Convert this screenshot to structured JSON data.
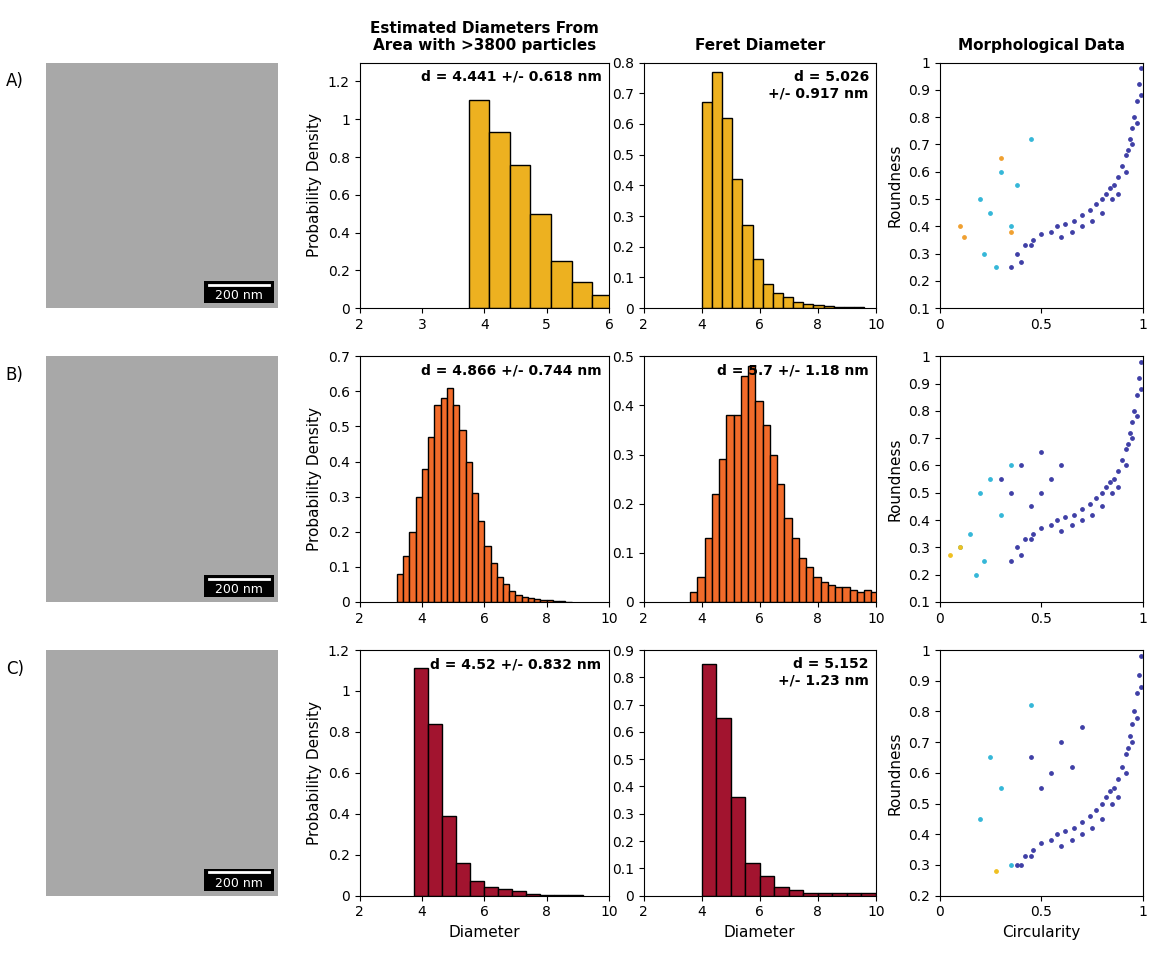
{
  "column_titles": [
    "Estimated Diameters From\nArea with >3800 particles",
    "Feret Diameter",
    "Morphological Data"
  ],
  "row_labels": [
    "A)",
    "B)",
    "C)"
  ],
  "scale_bars": [
    "200 nm",
    "200 nm",
    "200 nm"
  ],
  "chart_data": [
    {
      "type": "histogram",
      "color": "#EDB120",
      "bins": [
        3.75,
        4.08,
        4.41,
        4.74,
        5.07,
        5.4,
        5.73,
        6.06
      ],
      "counts": [
        1.1,
        0.93,
        0.76,
        0.5,
        0.25,
        0.14,
        0.07
      ],
      "xlim": [
        2,
        6
      ],
      "xticks": [
        2,
        3,
        4,
        5,
        6
      ],
      "ylim": [
        0,
        1.3
      ],
      "yticks": [
        0,
        0.2,
        0.4,
        0.6,
        0.8,
        1,
        1.2
      ],
      "ylabel": "Probability Density",
      "annotation": "d = 4.441 +/- 0.618 nm"
    },
    {
      "type": "histogram",
      "color": "#EDB120",
      "bins": [
        4.0,
        4.35,
        4.7,
        5.05,
        5.4,
        5.75,
        6.1,
        6.45,
        6.8,
        7.15,
        7.5,
        7.85,
        8.2,
        8.55,
        8.9,
        9.25,
        9.6
      ],
      "counts": [
        0.67,
        0.77,
        0.62,
        0.42,
        0.27,
        0.16,
        0.08,
        0.05,
        0.035,
        0.02,
        0.015,
        0.01,
        0.008,
        0.005,
        0.004,
        0.003
      ],
      "xlim": [
        2,
        10
      ],
      "xticks": [
        2,
        4,
        6,
        8,
        10
      ],
      "ylim": [
        0,
        0.8
      ],
      "yticks": [
        0,
        0.1,
        0.2,
        0.3,
        0.4,
        0.5,
        0.6,
        0.7,
        0.8
      ],
      "annotation": "d = 5.026\n+/- 0.917 nm"
    },
    {
      "type": "scatter",
      "xlim": [
        0,
        1
      ],
      "xticks": [
        0,
        0.5,
        1
      ],
      "ylim": [
        0.1,
        1
      ],
      "yticks": [
        0.1,
        0.2,
        0.3,
        0.4,
        0.5,
        0.6,
        0.7,
        0.8,
        0.9,
        1
      ],
      "ylabel": "Roundness",
      "series": [
        {
          "color": "#3f3fa6",
          "x": [
            0.99,
            0.98,
            0.97,
            0.96,
            0.95,
            0.94,
            0.93,
            0.92,
            0.9,
            0.88,
            0.86,
            0.84,
            0.82,
            0.8,
            0.77,
            0.74,
            0.7,
            0.66,
            0.62,
            0.58,
            0.55,
            0.5,
            0.46,
            0.42,
            0.38,
            0.99,
            0.97,
            0.95,
            0.92,
            0.88,
            0.85,
            0.8,
            0.75,
            0.7,
            0.65,
            0.6,
            0.45,
            0.4,
            0.35
          ],
          "y": [
            0.98,
            0.92,
            0.86,
            0.8,
            0.76,
            0.72,
            0.68,
            0.66,
            0.62,
            0.58,
            0.55,
            0.54,
            0.52,
            0.5,
            0.48,
            0.46,
            0.44,
            0.42,
            0.41,
            0.4,
            0.38,
            0.37,
            0.35,
            0.33,
            0.3,
            0.88,
            0.78,
            0.7,
            0.6,
            0.52,
            0.5,
            0.45,
            0.42,
            0.4,
            0.38,
            0.36,
            0.33,
            0.27,
            0.25
          ]
        },
        {
          "color": "#35b7d8",
          "x": [
            0.2,
            0.25,
            0.3,
            0.38,
            0.45,
            0.22,
            0.28,
            0.35
          ],
          "y": [
            0.5,
            0.45,
            0.6,
            0.55,
            0.72,
            0.3,
            0.25,
            0.4
          ]
        },
        {
          "color": "#f0a030",
          "x": [
            0.1,
            0.12,
            0.3,
            0.35
          ],
          "y": [
            0.4,
            0.36,
            0.65,
            0.38
          ]
        }
      ]
    },
    {
      "type": "histogram",
      "color": "#F26B2A",
      "bins": [
        3.2,
        3.4,
        3.6,
        3.8,
        4.0,
        4.2,
        4.4,
        4.6,
        4.8,
        5.0,
        5.2,
        5.4,
        5.6,
        5.8,
        6.0,
        6.2,
        6.4,
        6.6,
        6.8,
        7.0,
        7.2,
        7.4,
        7.6,
        7.8,
        8.0,
        8.2,
        8.4,
        8.6,
        8.8
      ],
      "counts": [
        0.08,
        0.13,
        0.2,
        0.3,
        0.38,
        0.47,
        0.56,
        0.58,
        0.61,
        0.56,
        0.49,
        0.4,
        0.31,
        0.23,
        0.16,
        0.11,
        0.07,
        0.05,
        0.03,
        0.02,
        0.015,
        0.01,
        0.008,
        0.005,
        0.004,
        0.003,
        0.002,
        0.001
      ],
      "xlim": [
        2,
        10
      ],
      "xticks": [
        2,
        4,
        6,
        8,
        10
      ],
      "ylim": [
        0,
        0.7
      ],
      "yticks": [
        0,
        0.1,
        0.2,
        0.3,
        0.4,
        0.5,
        0.6,
        0.7
      ],
      "ylabel": "Probability Density",
      "annotation": "d = 4.866 +/- 0.744 nm"
    },
    {
      "type": "histogram",
      "color": "#F26B2A",
      "bins": [
        3.6,
        3.85,
        4.1,
        4.35,
        4.6,
        4.85,
        5.1,
        5.35,
        5.6,
        5.85,
        6.1,
        6.35,
        6.6,
        6.85,
        7.1,
        7.35,
        7.6,
        7.85,
        8.1,
        8.35,
        8.6,
        8.85,
        9.1,
        9.35,
        9.6,
        9.85,
        10.1
      ],
      "counts": [
        0.02,
        0.05,
        0.13,
        0.22,
        0.29,
        0.38,
        0.38,
        0.46,
        0.48,
        0.41,
        0.36,
        0.3,
        0.24,
        0.17,
        0.13,
        0.09,
        0.07,
        0.05,
        0.04,
        0.035,
        0.03,
        0.03,
        0.025,
        0.02,
        0.025,
        0.02
      ],
      "xlim": [
        2,
        10
      ],
      "xticks": [
        2,
        4,
        6,
        8,
        10
      ],
      "ylim": [
        0,
        0.5
      ],
      "yticks": [
        0,
        0.1,
        0.2,
        0.3,
        0.4,
        0.5
      ],
      "annotation": "d = 5.7 +/- 1.18 nm"
    },
    {
      "type": "scatter",
      "xlim": [
        0,
        1
      ],
      "xticks": [
        0,
        0.5,
        1
      ],
      "ylim": [
        0.1,
        1
      ],
      "yticks": [
        0.1,
        0.2,
        0.3,
        0.4,
        0.5,
        0.6,
        0.7,
        0.8,
        0.9,
        1
      ],
      "ylabel": "Roundness",
      "series": [
        {
          "color": "#3f3fa6",
          "x": [
            0.99,
            0.98,
            0.97,
            0.96,
            0.95,
            0.94,
            0.93,
            0.92,
            0.9,
            0.88,
            0.86,
            0.84,
            0.82,
            0.8,
            0.77,
            0.74,
            0.7,
            0.66,
            0.62,
            0.58,
            0.55,
            0.5,
            0.46,
            0.42,
            0.38,
            0.99,
            0.97,
            0.95,
            0.92,
            0.88,
            0.85,
            0.8,
            0.75,
            0.7,
            0.65,
            0.6,
            0.45,
            0.4,
            0.35,
            0.3,
            0.35,
            0.4,
            0.5,
            0.55,
            0.6,
            0.45,
            0.5
          ],
          "y": [
            0.98,
            0.92,
            0.86,
            0.8,
            0.76,
            0.72,
            0.68,
            0.66,
            0.62,
            0.58,
            0.55,
            0.54,
            0.52,
            0.5,
            0.48,
            0.46,
            0.44,
            0.42,
            0.41,
            0.4,
            0.38,
            0.37,
            0.35,
            0.33,
            0.3,
            0.88,
            0.78,
            0.7,
            0.6,
            0.52,
            0.5,
            0.45,
            0.42,
            0.4,
            0.38,
            0.36,
            0.33,
            0.27,
            0.25,
            0.55,
            0.5,
            0.6,
            0.65,
            0.55,
            0.6,
            0.45,
            0.5
          ]
        },
        {
          "color": "#35b7d8",
          "x": [
            0.1,
            0.15,
            0.2,
            0.25,
            0.3,
            0.35,
            0.22,
            0.18
          ],
          "y": [
            0.3,
            0.35,
            0.5,
            0.55,
            0.42,
            0.6,
            0.25,
            0.2
          ]
        },
        {
          "color": "#f0c020",
          "x": [
            0.05,
            0.1
          ],
          "y": [
            0.27,
            0.3
          ]
        }
      ]
    },
    {
      "type": "histogram",
      "color": "#A2142F",
      "bins": [
        3.75,
        4.2,
        4.65,
        5.1,
        5.55,
        6.0,
        6.45,
        6.9,
        7.35,
        7.8,
        8.25,
        8.7,
        9.15
      ],
      "counts": [
        1.11,
        0.84,
        0.39,
        0.16,
        0.07,
        0.04,
        0.03,
        0.02,
        0.01,
        0.005,
        0.003,
        0.002
      ],
      "xlim": [
        2,
        10
      ],
      "xticks": [
        2,
        4,
        6,
        8,
        10
      ],
      "ylim": [
        0,
        1.2
      ],
      "yticks": [
        0,
        0.2,
        0.4,
        0.6,
        0.8,
        1,
        1.2
      ],
      "xlabel": "Diameter",
      "ylabel": "Probability Density",
      "annotation": "d = 4.52 +/- 0.832 nm"
    },
    {
      "type": "histogram",
      "color": "#A2142F",
      "bins": [
        4.0,
        4.5,
        5.0,
        5.5,
        6.0,
        6.5,
        7.0,
        7.5,
        8.0,
        8.5,
        9.0,
        9.5,
        10.0
      ],
      "counts": [
        0.85,
        0.65,
        0.36,
        0.12,
        0.07,
        0.03,
        0.02,
        0.01,
        0.01,
        0.01,
        0.01,
        0.01
      ],
      "xlim": [
        2,
        10
      ],
      "xticks": [
        2,
        4,
        6,
        8,
        10
      ],
      "ylim": [
        0,
        0.9
      ],
      "yticks": [
        0,
        0.1,
        0.2,
        0.3,
        0.4,
        0.5,
        0.6,
        0.7,
        0.8,
        0.9
      ],
      "xlabel": "Diameter",
      "annotation": "d = 5.152\n+/- 1.23 nm"
    },
    {
      "type": "scatter",
      "xlim": [
        0,
        1
      ],
      "xticks": [
        0,
        0.5,
        1
      ],
      "ylim": [
        0.2,
        1
      ],
      "yticks": [
        0.2,
        0.3,
        0.4,
        0.5,
        0.6,
        0.7,
        0.8,
        0.9,
        1
      ],
      "xlabel": "Circularity",
      "ylabel": "Roundness",
      "series": [
        {
          "color": "#3f3fa6",
          "x": [
            0.99,
            0.98,
            0.97,
            0.96,
            0.95,
            0.94,
            0.93,
            0.92,
            0.9,
            0.88,
            0.86,
            0.84,
            0.82,
            0.8,
            0.77,
            0.74,
            0.7,
            0.66,
            0.62,
            0.58,
            0.55,
            0.5,
            0.46,
            0.42,
            0.38,
            0.99,
            0.97,
            0.95,
            0.92,
            0.88,
            0.85,
            0.8,
            0.75,
            0.7,
            0.65,
            0.6,
            0.45,
            0.4,
            0.55,
            0.6,
            0.5,
            0.45,
            0.65,
            0.7
          ],
          "y": [
            0.98,
            0.92,
            0.86,
            0.8,
            0.76,
            0.72,
            0.68,
            0.66,
            0.62,
            0.58,
            0.55,
            0.54,
            0.52,
            0.5,
            0.48,
            0.46,
            0.44,
            0.42,
            0.41,
            0.4,
            0.38,
            0.37,
            0.35,
            0.33,
            0.3,
            0.88,
            0.78,
            0.7,
            0.6,
            0.52,
            0.5,
            0.45,
            0.42,
            0.4,
            0.38,
            0.36,
            0.33,
            0.3,
            0.6,
            0.7,
            0.55,
            0.65,
            0.62,
            0.75
          ]
        },
        {
          "color": "#35b7d8",
          "x": [
            0.2,
            0.25,
            0.3,
            0.45,
            0.35
          ],
          "y": [
            0.45,
            0.65,
            0.55,
            0.82,
            0.3
          ]
        },
        {
          "color": "#f0c020",
          "x": [
            0.28
          ],
          "y": [
            0.28
          ]
        }
      ]
    }
  ]
}
